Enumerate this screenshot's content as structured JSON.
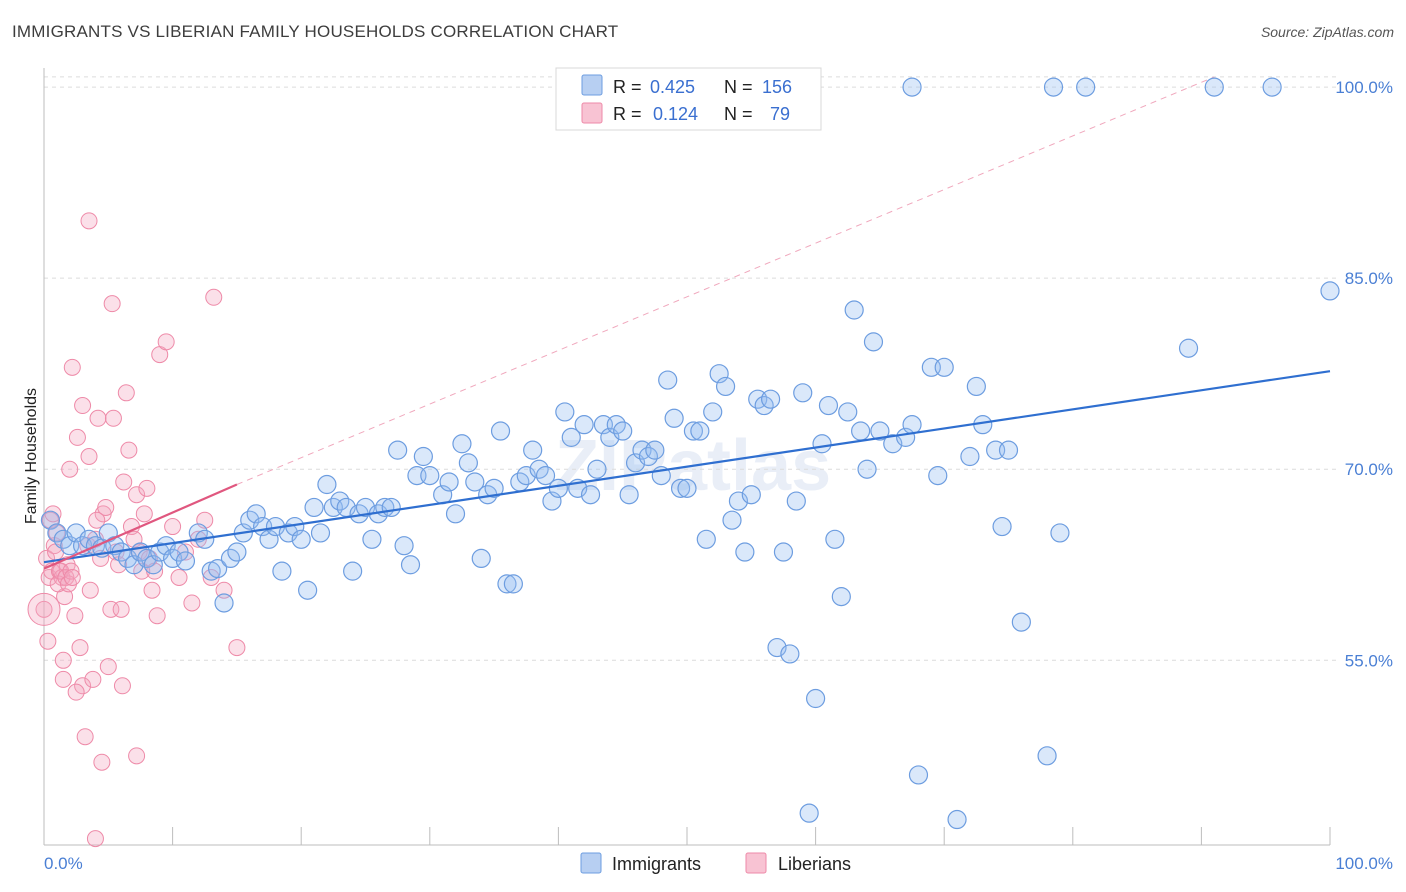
{
  "title": "IMMIGRANTS VS LIBERIAN FAMILY HOUSEHOLDS CORRELATION CHART",
  "source": "Source: ZipAtlas.com",
  "watermark": "ZIPatlas",
  "colors": {
    "blue": "#6d9de0",
    "blue_line": "#2f6fd0",
    "pink": "#ee8aa8",
    "pink_line": "#e0577f",
    "grid": "#dcdcdc"
  },
  "legend": {
    "rows": [
      {
        "r_label": "R =",
        "r_value": "0.425",
        "n_label": "N =",
        "n_value": "156"
      },
      {
        "r_label": "R =",
        "r_value": "0.124",
        "n_label": "N =",
        "n_value": "79"
      }
    ]
  },
  "bottom_legend": {
    "immigrants": "Immigrants",
    "liberians": "Liberians"
  },
  "chart_data": {
    "type": "scatter",
    "title": "IMMIGRANTS VS LIBERIAN FAMILY HOUSEHOLDS CORRELATION CHART",
    "xlabel": "",
    "ylabel": "Family Households",
    "xlim": [
      0,
      100
    ],
    "ylim": [
      40.5,
      101.5
    ],
    "x_tick_labels": [
      "0.0%",
      "100.0%"
    ],
    "y_ticks": [
      55,
      70,
      85,
      100
    ],
    "y_tick_labels": [
      "55.0%",
      "70.0%",
      "85.0%",
      "100.0%"
    ],
    "series": [
      {
        "name": "Immigrants",
        "r": 0.425,
        "n": 156,
        "trend": {
          "x": [
            0,
            100
          ],
          "y": [
            62.7,
            77.7
          ]
        },
        "points": [
          [
            0.5,
            66.0
          ],
          [
            1,
            65.0
          ],
          [
            1.5,
            64.5
          ],
          [
            2,
            64.0
          ],
          [
            2.5,
            65.0
          ],
          [
            3,
            64.0
          ],
          [
            3.5,
            64.5
          ],
          [
            4,
            64.0
          ],
          [
            4.5,
            63.8
          ],
          [
            5,
            65.0
          ],
          [
            5.5,
            64.0
          ],
          [
            6,
            63.5
          ],
          [
            6.5,
            63.0
          ],
          [
            7,
            62.5
          ],
          [
            7.5,
            63.5
          ],
          [
            8,
            63.0
          ],
          [
            8.5,
            62.5
          ],
          [
            9,
            63.5
          ],
          [
            9.5,
            64.0
          ],
          [
            10,
            63.0
          ],
          [
            10.5,
            63.5
          ],
          [
            11,
            62.8
          ],
          [
            12,
            65.0
          ],
          [
            12.5,
            64.5
          ],
          [
            13,
            62.0
          ],
          [
            13.5,
            62.2
          ],
          [
            14,
            59.5
          ],
          [
            14.5,
            63.0
          ],
          [
            15,
            63.5
          ],
          [
            15.5,
            65.0
          ],
          [
            16,
            66.0
          ],
          [
            16.5,
            66.5
          ],
          [
            17,
            65.5
          ],
          [
            17.5,
            64.5
          ],
          [
            18,
            65.5
          ],
          [
            18.5,
            62.0
          ],
          [
            19,
            65.0
          ],
          [
            19.5,
            65.5
          ],
          [
            20,
            64.5
          ],
          [
            20.5,
            60.5
          ],
          [
            21,
            67.0
          ],
          [
            21.5,
            65.0
          ],
          [
            22,
            68.8
          ],
          [
            22.5,
            67.0
          ],
          [
            23,
            67.5
          ],
          [
            23.5,
            67.0
          ],
          [
            24,
            62.0
          ],
          [
            24.5,
            66.5
          ],
          [
            25,
            67.0
          ],
          [
            25.5,
            64.5
          ],
          [
            26,
            66.5
          ],
          [
            26.5,
            67.0
          ],
          [
            27,
            67.0
          ],
          [
            27.5,
            71.5
          ],
          [
            28,
            64.0
          ],
          [
            28.5,
            62.5
          ],
          [
            29,
            69.5
          ],
          [
            29.5,
            71.0
          ],
          [
            30,
            69.5
          ],
          [
            31,
            68.0
          ],
          [
            31.5,
            69.0
          ],
          [
            32,
            66.5
          ],
          [
            32.5,
            72.0
          ],
          [
            33,
            70.5
          ],
          [
            33.5,
            69.0
          ],
          [
            34,
            63.0
          ],
          [
            34.5,
            68.0
          ],
          [
            35,
            68.5
          ],
          [
            35.5,
            73.0
          ],
          [
            36,
            61.0
          ],
          [
            36.5,
            61.0
          ],
          [
            37,
            69.0
          ],
          [
            37.5,
            69.5
          ],
          [
            38,
            71.5
          ],
          [
            38.5,
            70.0
          ],
          [
            39,
            69.5
          ],
          [
            39.5,
            67.5
          ],
          [
            40,
            68.5
          ],
          [
            40.5,
            74.5
          ],
          [
            41,
            72.5
          ],
          [
            41.5,
            68.5
          ],
          [
            42,
            73.5
          ],
          [
            42.5,
            68.0
          ],
          [
            43,
            70.0
          ],
          [
            43.5,
            73.5
          ],
          [
            44,
            72.5
          ],
          [
            44.5,
            73.5
          ],
          [
            45,
            73.0
          ],
          [
            45.5,
            68.0
          ],
          [
            46,
            70.5
          ],
          [
            46.5,
            71.5
          ],
          [
            47,
            71.0
          ],
          [
            47.5,
            71.5
          ],
          [
            48,
            69.5
          ],
          [
            48.5,
            77.0
          ],
          [
            49,
            74.0
          ],
          [
            49.5,
            68.5
          ],
          [
            50,
            68.5
          ],
          [
            50.5,
            73.0
          ],
          [
            51,
            73.0
          ],
          [
            51.5,
            64.5
          ],
          [
            52,
            74.5
          ],
          [
            52.5,
            77.5
          ],
          [
            53,
            76.5
          ],
          [
            53.5,
            66.0
          ],
          [
            54,
            67.5
          ],
          [
            54.5,
            63.5
          ],
          [
            55,
            68.0
          ],
          [
            55.5,
            75.5
          ],
          [
            56,
            75.0
          ],
          [
            56.5,
            75.5
          ],
          [
            57,
            56.0
          ],
          [
            57.5,
            63.5
          ],
          [
            58,
            55.5
          ],
          [
            58.5,
            67.5
          ],
          [
            59,
            76.0
          ],
          [
            59.5,
            43.0
          ],
          [
            60,
            52.0
          ],
          [
            60.5,
            72.0
          ],
          [
            61,
            75.0
          ],
          [
            61.5,
            64.5
          ],
          [
            62,
            60.0
          ],
          [
            62.5,
            74.5
          ],
          [
            63,
            82.5
          ],
          [
            63.5,
            73.0
          ],
          [
            64,
            70.0
          ],
          [
            64.5,
            80.0
          ],
          [
            65,
            73.0
          ],
          [
            66,
            72.0
          ],
          [
            67,
            72.5
          ],
          [
            67.5,
            73.5
          ],
          [
            68,
            46.0
          ],
          [
            69,
            78.0
          ],
          [
            69.5,
            69.5
          ],
          [
            70,
            78.0
          ],
          [
            71,
            42.5
          ],
          [
            72,
            71.0
          ],
          [
            72.5,
            76.5
          ],
          [
            73,
            73.5
          ],
          [
            74,
            71.5
          ],
          [
            74.5,
            65.5
          ],
          [
            75,
            71.5
          ],
          [
            76,
            58.0
          ],
          [
            78,
            47.5
          ],
          [
            79,
            65.0
          ],
          [
            67.5,
            100.0
          ],
          [
            78.5,
            100.0
          ],
          [
            81,
            100.0
          ],
          [
            91,
            100.0
          ],
          [
            95.5,
            100.0
          ],
          [
            89,
            79.5
          ],
          [
            100,
            84.0
          ]
        ]
      },
      {
        "name": "Liberians",
        "r": 0.124,
        "n": 79,
        "trend": {
          "x": [
            0,
            15
          ],
          "y": [
            62.2,
            68.8
          ]
        },
        "points": [
          [
            0,
            59.0
          ],
          [
            0.2,
            63.0
          ],
          [
            0.4,
            61.5
          ],
          [
            0.6,
            62.0
          ],
          [
            0.8,
            64.0
          ],
          [
            1,
            65.0
          ],
          [
            1.2,
            62.0
          ],
          [
            1.4,
            61.5
          ],
          [
            1.6,
            60.0
          ],
          [
            1.8,
            62.5
          ],
          [
            0.3,
            56.5
          ],
          [
            0.5,
            66.0
          ],
          [
            0.7,
            66.5
          ],
          [
            0.9,
            63.5
          ],
          [
            1.1,
            61.0
          ],
          [
            1.3,
            62.0
          ],
          [
            1.5,
            55.0
          ],
          [
            1.7,
            61.5
          ],
          [
            1.9,
            61.0
          ],
          [
            2,
            70.0
          ],
          [
            2.1,
            62.0
          ],
          [
            2.2,
            61.5
          ],
          [
            2.4,
            58.5
          ],
          [
            2.6,
            72.5
          ],
          [
            2.8,
            56.0
          ],
          [
            3,
            53.0
          ],
          [
            3.2,
            49.0
          ],
          [
            3.4,
            64.0
          ],
          [
            3.6,
            60.5
          ],
          [
            3.8,
            53.5
          ],
          [
            4,
            64.5
          ],
          [
            4.2,
            74.0
          ],
          [
            4.4,
            63.0
          ],
          [
            4.6,
            66.5
          ],
          [
            4.8,
            67.0
          ],
          [
            5,
            54.5
          ],
          [
            5.2,
            59.0
          ],
          [
            5.4,
            74.0
          ],
          [
            5.6,
            63.5
          ],
          [
            5.8,
            62.5
          ],
          [
            6,
            59.0
          ],
          [
            6.2,
            69.0
          ],
          [
            6.4,
            76.0
          ],
          [
            6.6,
            71.5
          ],
          [
            6.8,
            65.5
          ],
          [
            7,
            64.5
          ],
          [
            7.2,
            68.0
          ],
          [
            7.4,
            63.5
          ],
          [
            7.6,
            62.0
          ],
          [
            7.8,
            66.5
          ],
          [
            8,
            68.5
          ],
          [
            8.2,
            63.0
          ],
          [
            8.4,
            60.5
          ],
          [
            8.6,
            62.0
          ],
          [
            8.8,
            58.5
          ],
          [
            9,
            79.0
          ],
          [
            9.5,
            80.0
          ],
          [
            10,
            65.5
          ],
          [
            10.5,
            61.5
          ],
          [
            11,
            63.5
          ],
          [
            11.5,
            59.5
          ],
          [
            12,
            64.5
          ],
          [
            12.5,
            66.0
          ],
          [
            13,
            61.5
          ],
          [
            14,
            60.5
          ],
          [
            15,
            56.0
          ],
          [
            3.5,
            89.5
          ],
          [
            4,
            41.0
          ],
          [
            4.5,
            47.0
          ],
          [
            2.5,
            52.5
          ],
          [
            1.5,
            53.5
          ],
          [
            2.2,
            78.0
          ],
          [
            3,
            75.0
          ],
          [
            3.5,
            71.0
          ],
          [
            4.1,
            66.0
          ],
          [
            5.3,
            83.0
          ],
          [
            6.1,
            53.0
          ],
          [
            7.2,
            47.5
          ],
          [
            13.2,
            83.5
          ]
        ]
      }
    ]
  }
}
